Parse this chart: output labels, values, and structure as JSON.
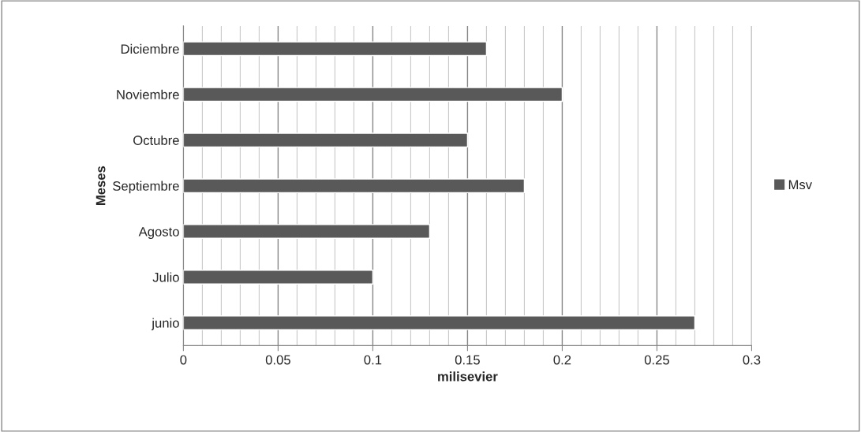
{
  "chart_data": {
    "type": "bar",
    "orientation": "horizontal",
    "xlabel": "milisevier",
    "ylabel": "Meses",
    "categories": [
      "Diciembre",
      "Noviembre",
      "Octubre",
      "Septiembre",
      "Agosto",
      "Julio",
      "junio"
    ],
    "series": [
      {
        "name": "Msv",
        "color": "#595959",
        "values": [
          0.16,
          0.2,
          0.15,
          0.18,
          0.13,
          0.1,
          0.27
        ]
      }
    ],
    "xlim": [
      0,
      0.3
    ],
    "xticks": [
      0,
      0.05,
      0.1,
      0.15,
      0.2,
      0.25,
      0.3
    ],
    "grid": "x",
    "legend": "right"
  }
}
